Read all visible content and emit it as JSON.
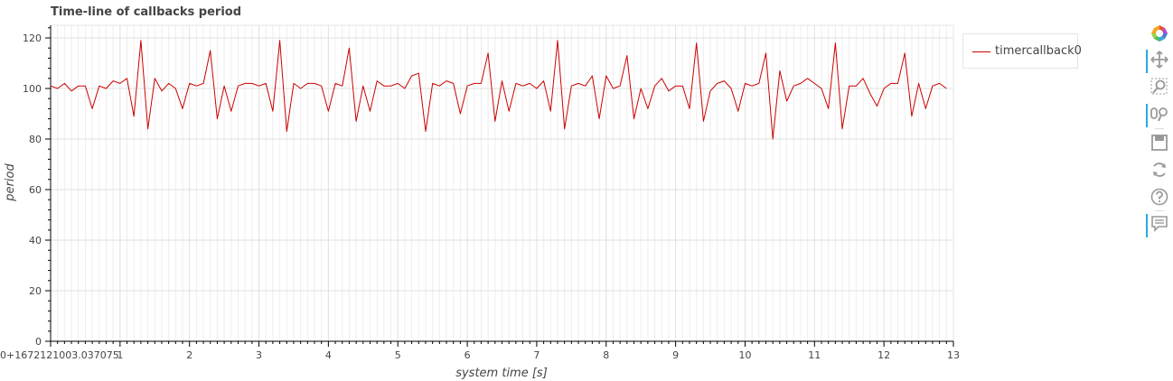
{
  "chart_data": {
    "type": "line",
    "title": "Time-line of callbacks period",
    "xlabel": "system time [s]",
    "ylabel": "period",
    "xlim": [
      0,
      13
    ],
    "ylim": [
      0,
      125
    ],
    "x_ticks": [
      "0+1672121003.037075",
      "1",
      "2",
      "3",
      "4",
      "5",
      "6",
      "7",
      "8",
      "9",
      "10",
      "11",
      "12",
      "13"
    ],
    "y_ticks": [
      "0",
      "20",
      "40",
      "60",
      "80",
      "100",
      "120"
    ],
    "grid": true,
    "legend_position": "top-right (outside plot)",
    "series": [
      {
        "name": "timercallback0",
        "color": "#cc0000",
        "x": [
          0.0,
          0.1,
          0.2,
          0.3,
          0.4,
          0.5,
          0.6,
          0.7,
          0.8,
          0.9,
          1.0,
          1.1,
          1.2,
          1.3,
          1.4,
          1.5,
          1.6,
          1.7,
          1.8,
          1.9,
          2.0,
          2.1,
          2.2,
          2.3,
          2.4,
          2.5,
          2.6,
          2.7,
          2.8,
          2.9,
          3.0,
          3.1,
          3.2,
          3.3,
          3.4,
          3.5,
          3.6,
          3.7,
          3.8,
          3.9,
          4.0,
          4.1,
          4.2,
          4.3,
          4.4,
          4.5,
          4.6,
          4.7,
          4.8,
          4.9,
          5.0,
          5.1,
          5.2,
          5.3,
          5.4,
          5.5,
          5.6,
          5.7,
          5.8,
          5.9,
          6.0,
          6.1,
          6.2,
          6.3,
          6.4,
          6.5,
          6.6,
          6.7,
          6.8,
          6.9,
          7.0,
          7.1,
          7.2,
          7.3,
          7.4,
          7.5,
          7.6,
          7.7,
          7.8,
          7.9,
          8.0,
          8.1,
          8.2,
          8.3,
          8.4,
          8.5,
          8.6,
          8.7,
          8.8,
          8.9,
          9.0,
          9.1,
          9.2,
          9.3,
          9.4,
          9.5,
          9.6,
          9.7,
          9.8,
          9.9,
          10.0,
          10.1,
          10.2,
          10.3,
          10.4,
          10.5,
          10.6,
          10.7,
          10.8,
          10.9,
          11.0,
          11.1,
          11.2,
          11.3,
          11.4,
          11.5,
          11.6,
          11.7,
          11.8,
          11.9,
          12.0,
          12.1,
          12.2,
          12.3,
          12.4,
          12.5,
          12.6,
          12.7,
          12.8,
          12.9
        ],
        "y": [
          101,
          100,
          102,
          99,
          101,
          101,
          92,
          101,
          100,
          103,
          102,
          104,
          89,
          119,
          84,
          104,
          99,
          102,
          100,
          92,
          102,
          101,
          102,
          115,
          88,
          101,
          91,
          101,
          102,
          102,
          101,
          102,
          91,
          119,
          83,
          102,
          100,
          102,
          102,
          101,
          91,
          102,
          101,
          116,
          87,
          101,
          91,
          103,
          101,
          101,
          102,
          100,
          105,
          106,
          83,
          102,
          101,
          103,
          102,
          90,
          101,
          102,
          102,
          114,
          87,
          103,
          91,
          102,
          101,
          102,
          100,
          103,
          91,
          119,
          84,
          101,
          102,
          101,
          105,
          88,
          105,
          100,
          101,
          113,
          88,
          100,
          92,
          101,
          104,
          99,
          101,
          101,
          92,
          118,
          87,
          99,
          102,
          103,
          100,
          91,
          102,
          101,
          102,
          114,
          80,
          107,
          95,
          101,
          102,
          104,
          102,
          100,
          92,
          118,
          84,
          101,
          101,
          104,
          98,
          93,
          100,
          102,
          102,
          114,
          89,
          102,
          92,
          101,
          102,
          100
        ]
      }
    ]
  },
  "toolbar": {
    "tools": [
      "bokeh-logo-icon",
      "pan-icon",
      "box-zoom-icon",
      "wheel-zoom-icon",
      "save-icon",
      "reset-icon",
      "help-icon",
      "hover-icon"
    ]
  }
}
